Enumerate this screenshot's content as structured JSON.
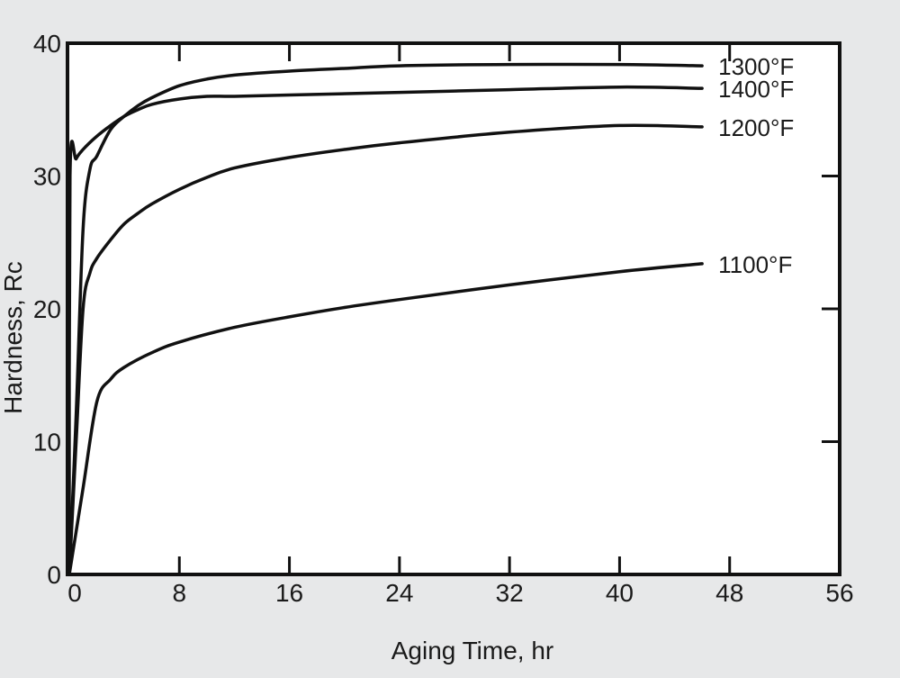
{
  "chart_data": {
    "type": "line",
    "title": "",
    "xlabel": "Aging Time, hr",
    "ylabel": "Hardness, Rc",
    "xlim": [
      0,
      56
    ],
    "ylim": [
      0,
      40
    ],
    "xticks": [
      "0",
      "8",
      "16",
      "24",
      "32",
      "40",
      "48",
      "56"
    ],
    "yticks": [
      "0",
      "10",
      "20",
      "30",
      "40"
    ],
    "grid": false,
    "legend": "inline labels at right end of each curve",
    "series": [
      {
        "name": "1300°F",
        "points": [
          [
            0,
            0
          ],
          [
            0.5,
            12
          ],
          [
            1,
            26
          ],
          [
            1.5,
            30.5
          ],
          [
            2,
            31.5
          ],
          [
            3,
            33.5
          ],
          [
            4,
            34.5
          ],
          [
            5,
            35.3
          ],
          [
            6,
            35.9
          ],
          [
            8,
            36.8
          ],
          [
            10,
            37.3
          ],
          [
            12,
            37.6
          ],
          [
            16,
            37.9
          ],
          [
            20,
            38.1
          ],
          [
            24,
            38.3
          ],
          [
            32,
            38.4
          ],
          [
            40,
            38.4
          ],
          [
            46,
            38.3
          ]
        ]
      },
      {
        "name": "1400°F",
        "points": [
          [
            0,
            0
          ],
          [
            0.05,
            30
          ],
          [
            0.5,
            31.3
          ],
          [
            1,
            32
          ],
          [
            2,
            33
          ],
          [
            3,
            33.8
          ],
          [
            4,
            34.5
          ],
          [
            5,
            35
          ],
          [
            6,
            35.4
          ],
          [
            8,
            35.8
          ],
          [
            10,
            36
          ],
          [
            12,
            36
          ],
          [
            16,
            36.1
          ],
          [
            24,
            36.3
          ],
          [
            32,
            36.5
          ],
          [
            40,
            36.7
          ],
          [
            46,
            36.6
          ]
        ]
      },
      {
        "name": "1200°F",
        "points": [
          [
            0,
            0
          ],
          [
            0.5,
            10
          ],
          [
            1,
            20
          ],
          [
            1.5,
            22.7
          ],
          [
            2,
            23.8
          ],
          [
            3,
            25.2
          ],
          [
            4,
            26.4
          ],
          [
            5,
            27.2
          ],
          [
            6,
            27.9
          ],
          [
            8,
            29
          ],
          [
            10,
            29.9
          ],
          [
            12,
            30.6
          ],
          [
            16,
            31.4
          ],
          [
            20,
            32
          ],
          [
            24,
            32.5
          ],
          [
            32,
            33.3
          ],
          [
            40,
            33.8
          ],
          [
            46,
            33.7
          ]
        ]
      },
      {
        "name": "1100°F",
        "points": [
          [
            0,
            0
          ],
          [
            1,
            6.5
          ],
          [
            2,
            13
          ],
          [
            3,
            14.7
          ],
          [
            4,
            15.6
          ],
          [
            6,
            16.7
          ],
          [
            8,
            17.5
          ],
          [
            12,
            18.6
          ],
          [
            16,
            19.4
          ],
          [
            20,
            20.1
          ],
          [
            24,
            20.7
          ],
          [
            32,
            21.8
          ],
          [
            40,
            22.8
          ],
          [
            46,
            23.4
          ]
        ]
      }
    ]
  }
}
